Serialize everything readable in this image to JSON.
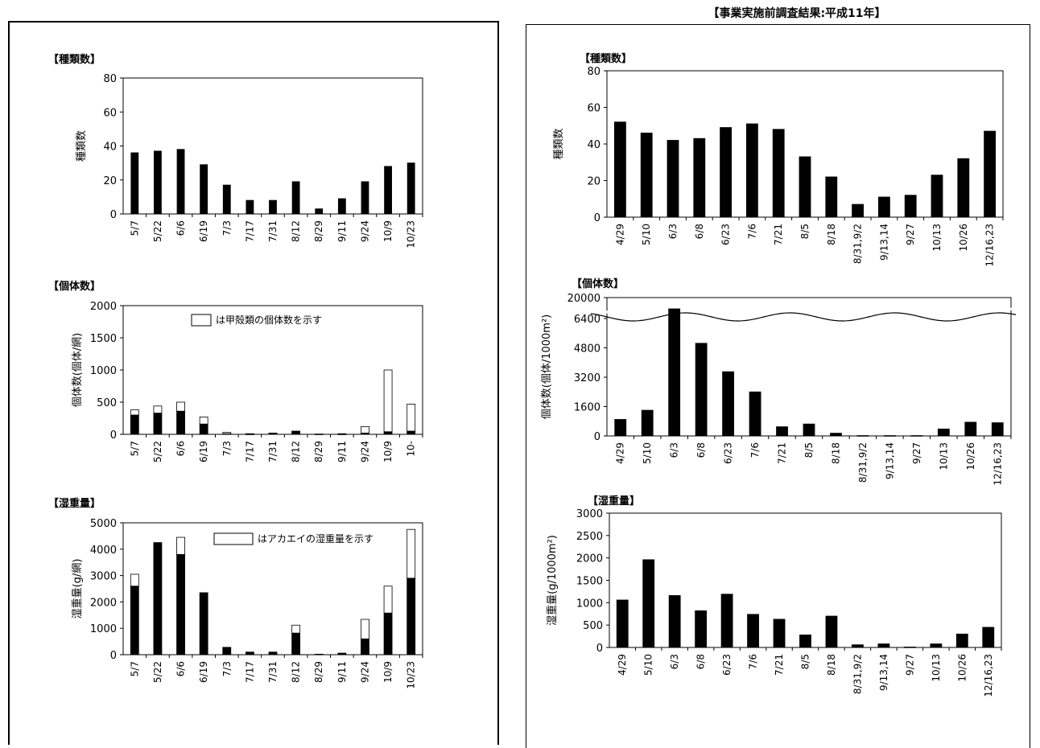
{
  "page_title": "【事業実施前調査結果:平成11年】",
  "chart_data": [
    {
      "type": "bar",
      "panel": "left",
      "title": "【種類数】",
      "ylabel": "種類数",
      "ylim": [
        0,
        80
      ],
      "yticks": [
        "0",
        "20",
        "40",
        "60",
        "80"
      ],
      "categories": [
        "5/7",
        "5/22",
        "6/6",
        "6/19",
        "7/3",
        "7/17",
        "7/31",
        "8/12",
        "8/29",
        "9/11",
        "9/24",
        "10/9",
        "10/23"
      ],
      "series": [
        {
          "values": [
            36,
            37,
            38,
            29,
            17,
            8,
            8,
            19,
            3,
            9,
            19,
            28,
            30
          ]
        }
      ]
    },
    {
      "type": "bar",
      "stacked": true,
      "panel": "left",
      "title": "【個体数】",
      "ylabel": "個体数(個体/網)",
      "ylim": [
        0,
        2000
      ],
      "yticks": [
        "0",
        "500",
        "1000",
        "1500",
        "2000"
      ],
      "legend": "は甲殻類の個体数を示す",
      "categories": [
        "5/7",
        "5/22",
        "6/6",
        "6/19",
        "7/3",
        "7/17",
        "7/31",
        "8/12",
        "8/29",
        "9/11",
        "9/24",
        "10/9",
        "10-"
      ],
      "series": [
        {
          "fill": "#000000",
          "values": [
            300,
            330,
            360,
            160,
            10,
            5,
            10,
            40,
            5,
            5,
            20,
            40,
            50
          ]
        },
        {
          "fill": "#ffffff",
          "values": [
            80,
            110,
            140,
            110,
            20,
            5,
            10,
            10,
            0,
            5,
            100,
            960,
            420
          ]
        }
      ]
    },
    {
      "type": "bar",
      "stacked": true,
      "panel": "left",
      "title": "【湿重量】",
      "ylabel": "湿重量(g/網)",
      "ylim": [
        0,
        5000
      ],
      "yticks": [
        "0",
        "1000",
        "2000",
        "3000",
        "4000",
        "5000"
      ],
      "legend": "はアカエイの湿重量を示す",
      "categories": [
        "5/7",
        "5/22",
        "6/6",
        "6/19",
        "7/3",
        "7/17",
        "7/31",
        "8/12",
        "8/29",
        "9/11",
        "9/24",
        "10/9",
        "10/23"
      ],
      "series": [
        {
          "fill": "#000000",
          "values": [
            2600,
            4250,
            3800,
            2350,
            280,
            100,
            100,
            820,
            20,
            60,
            600,
            1580,
            2900
          ]
        },
        {
          "fill": "#ffffff",
          "values": [
            450,
            0,
            650,
            0,
            0,
            0,
            0,
            300,
            0,
            0,
            740,
            1020,
            1850
          ]
        }
      ]
    },
    {
      "type": "bar",
      "panel": "right",
      "title": "【種類数】",
      "ylabel": "種類数",
      "ylim": [
        0,
        80
      ],
      "yticks": [
        "0",
        "20",
        "40",
        "60",
        "80"
      ],
      "categories": [
        "4/29",
        "5/10",
        "6/3",
        "6/8",
        "6/23",
        "7/6",
        "7/21",
        "8/5",
        "8/18",
        "8/31,9/2",
        "9/13,14",
        "9/27",
        "10/13",
        "10/26",
        "12/16,23"
      ],
      "series": [
        {
          "values": [
            52,
            46,
            42,
            43,
            49,
            51,
            48,
            33,
            22,
            7,
            11,
            12,
            23,
            32,
            47
          ]
        }
      ]
    },
    {
      "type": "bar",
      "panel": "right",
      "title": "【個体数】",
      "ylabel": "個体数(個体/1000m²)",
      "ylim": [
        0,
        6400
      ],
      "axis_break": true,
      "yticks": [
        "0",
        "1600",
        "3200",
        "4800",
        "6400",
        "20000"
      ],
      "categories": [
        "4/29",
        "5/10",
        "6/3",
        "6/8",
        "6/23",
        "7/6",
        "7/21",
        "8/5",
        "8/18",
        "8/31,9/2",
        "9/13,14",
        "9/27",
        "10/13",
        "10/26",
        "12/16,23"
      ],
      "series": [
        {
          "values": [
            900,
            1400,
            7000,
            5050,
            3500,
            2400,
            500,
            650,
            150,
            20,
            20,
            20,
            380,
            750,
            720
          ]
        }
      ]
    },
    {
      "type": "bar",
      "panel": "right",
      "title": "【湿重量】",
      "ylabel": "湿重量(g/1000m²)",
      "ylim": [
        0,
        3000
      ],
      "yticks": [
        "0",
        "500",
        "1000",
        "1500",
        "2000",
        "2500",
        "3000"
      ],
      "categories": [
        "4/29",
        "5/10",
        "6/3",
        "6/8",
        "6/23",
        "7/6",
        "7/21",
        "8/5",
        "8/18",
        "8/31,9/2",
        "9/13,14",
        "9/27",
        "10/13",
        "10/26",
        "12/16,23"
      ],
      "series": [
        {
          "values": [
            1060,
            1960,
            1160,
            820,
            1190,
            740,
            630,
            280,
            700,
            60,
            80,
            10,
            80,
            300,
            450
          ]
        }
      ]
    }
  ]
}
